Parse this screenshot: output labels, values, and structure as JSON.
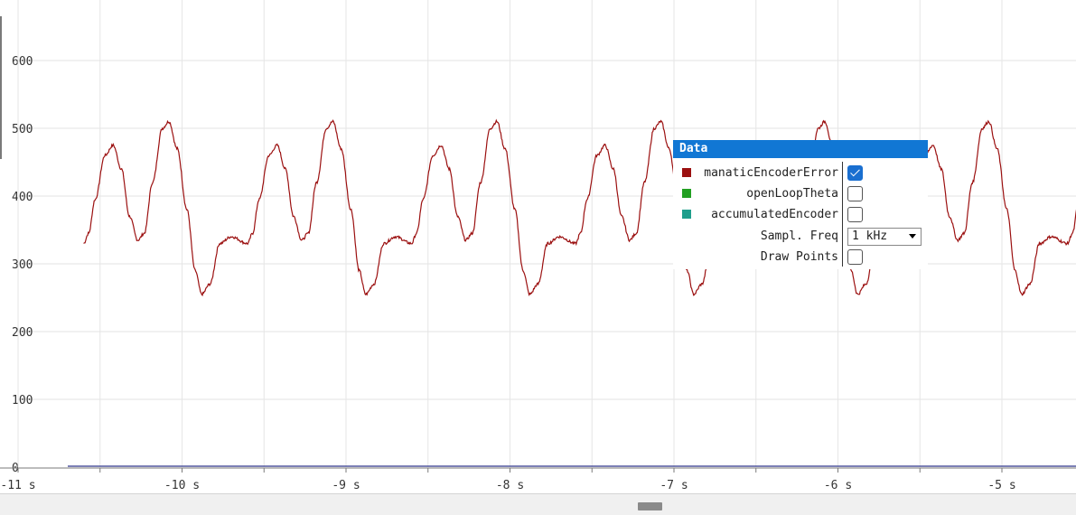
{
  "chart_data": {
    "type": "line",
    "title": "",
    "xlabel": "",
    "ylabel": "",
    "xlim": [
      -11.0,
      -4.5
    ],
    "ylim": [
      0,
      680
    ],
    "y_ticks": [
      0,
      100,
      200,
      300,
      400,
      500,
      600
    ],
    "y_tick_labels": [
      "0",
      "100",
      "200",
      "300",
      "400",
      "500",
      "600"
    ],
    "x_ticks": [
      -11,
      -10,
      -9,
      -8,
      -7,
      -6,
      -5
    ],
    "x_tick_labels": [
      "-11 s",
      "-10 s",
      "-9 s",
      "-8 s",
      "-7 s",
      "-6 s",
      "-5 s"
    ],
    "series": [
      {
        "name": "manaticEncoderError",
        "color": "#9b1010",
        "period_s": 1.0,
        "x_start": -10.6,
        "x_end": -4.5,
        "points": [
          [
            0.0,
            330
          ],
          [
            0.03,
            345
          ],
          [
            0.07,
            395
          ],
          [
            0.13,
            460
          ],
          [
            0.18,
            475
          ],
          [
            0.23,
            440
          ],
          [
            0.28,
            370
          ],
          [
            0.33,
            335
          ],
          [
            0.37,
            345
          ],
          [
            0.42,
            420
          ],
          [
            0.48,
            500
          ],
          [
            0.52,
            510
          ],
          [
            0.57,
            470
          ],
          [
            0.63,
            380
          ],
          [
            0.68,
            290
          ],
          [
            0.72,
            255
          ],
          [
            0.77,
            270
          ],
          [
            0.83,
            330
          ],
          [
            0.9,
            340
          ],
          [
            1.0,
            330
          ]
        ]
      },
      {
        "name": "openLoopTheta",
        "color": "#22a022",
        "values": [],
        "baseline": 0
      },
      {
        "name": "accumulatedEncoder",
        "color": "#1f9e8c",
        "values": [],
        "baseline": 0
      }
    ]
  },
  "legend": {
    "header": "Data",
    "items": [
      {
        "label": "manaticEncoderError",
        "color": "#9b1010",
        "checked": true
      },
      {
        "label": "openLoopTheta",
        "color": "#22a022",
        "checked": false
      },
      {
        "label": "accumulatedEncoder",
        "color": "#1f9e8c",
        "checked": false
      }
    ],
    "freq_label": "Sampl. Freq",
    "freq_value": "1 kHz",
    "draw_points_label": "Draw Points",
    "draw_points_checked": false
  }
}
